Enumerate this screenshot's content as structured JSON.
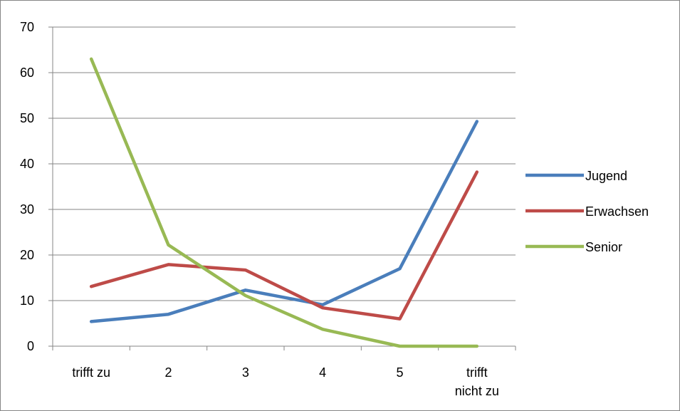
{
  "chart_data": {
    "type": "line",
    "title": "",
    "xlabel": "",
    "ylabel": "",
    "categories": [
      [
        "trifft zu"
      ],
      [
        "2"
      ],
      [
        "3"
      ],
      [
        "4"
      ],
      [
        "5"
      ],
      [
        "trifft",
        "nicht zu"
      ]
    ],
    "ylim": [
      0,
      70
    ],
    "yticks": [
      0,
      10,
      20,
      30,
      40,
      50,
      60,
      70
    ],
    "grid": true,
    "legend_position": "right",
    "series": [
      {
        "name": "Jugend",
        "color": "#4a7ebb",
        "values": [
          5.4,
          7.0,
          12.3,
          9.1,
          17.0,
          49.3
        ]
      },
      {
        "name": "Erwachsen",
        "color": "#be4b48",
        "values": [
          13.1,
          17.9,
          16.7,
          8.4,
          6.0,
          38.2
        ]
      },
      {
        "name": "Senior",
        "color": "#98b954",
        "values": [
          63.0,
          22.2,
          11.1,
          3.7,
          0.0,
          0.0
        ]
      }
    ]
  }
}
